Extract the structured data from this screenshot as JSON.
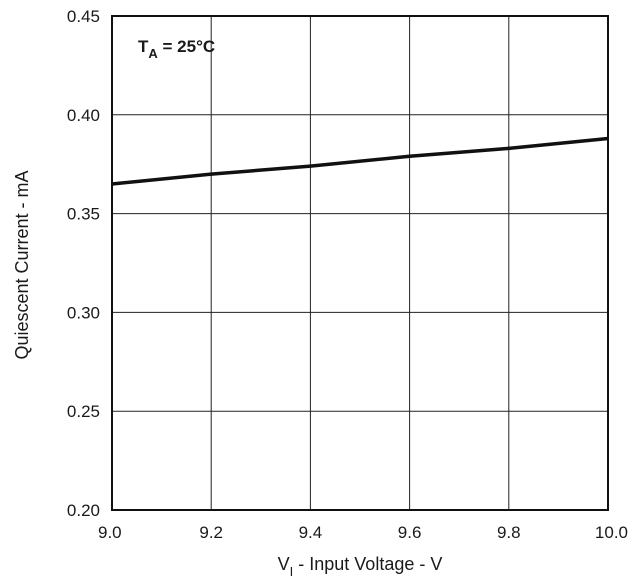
{
  "chart_data": {
    "type": "line",
    "title": "",
    "annotation": {
      "main": "T",
      "sub": "A",
      "rest": " = 25°C"
    },
    "xlabel": {
      "main": "V",
      "sub": "I",
      "rest": " - Input Voltage - V"
    },
    "ylabel": "Quiescent Current - mA",
    "xlim": [
      9.0,
      10.0
    ],
    "ylim": [
      0.2,
      0.45
    ],
    "xticks": [
      "9.0",
      "9.2",
      "9.4",
      "9.6",
      "9.8",
      "10.0"
    ],
    "yticks": [
      "0.20",
      "0.25",
      "0.30",
      "0.35",
      "0.40",
      "0.45"
    ],
    "grid": true,
    "series": [
      {
        "x": [
          9.0,
          9.2,
          9.4,
          9.6,
          9.8,
          10.0
        ],
        "y": [
          0.365,
          0.37,
          0.374,
          0.379,
          0.383,
          0.388
        ],
        "color": "#111111"
      }
    ]
  }
}
